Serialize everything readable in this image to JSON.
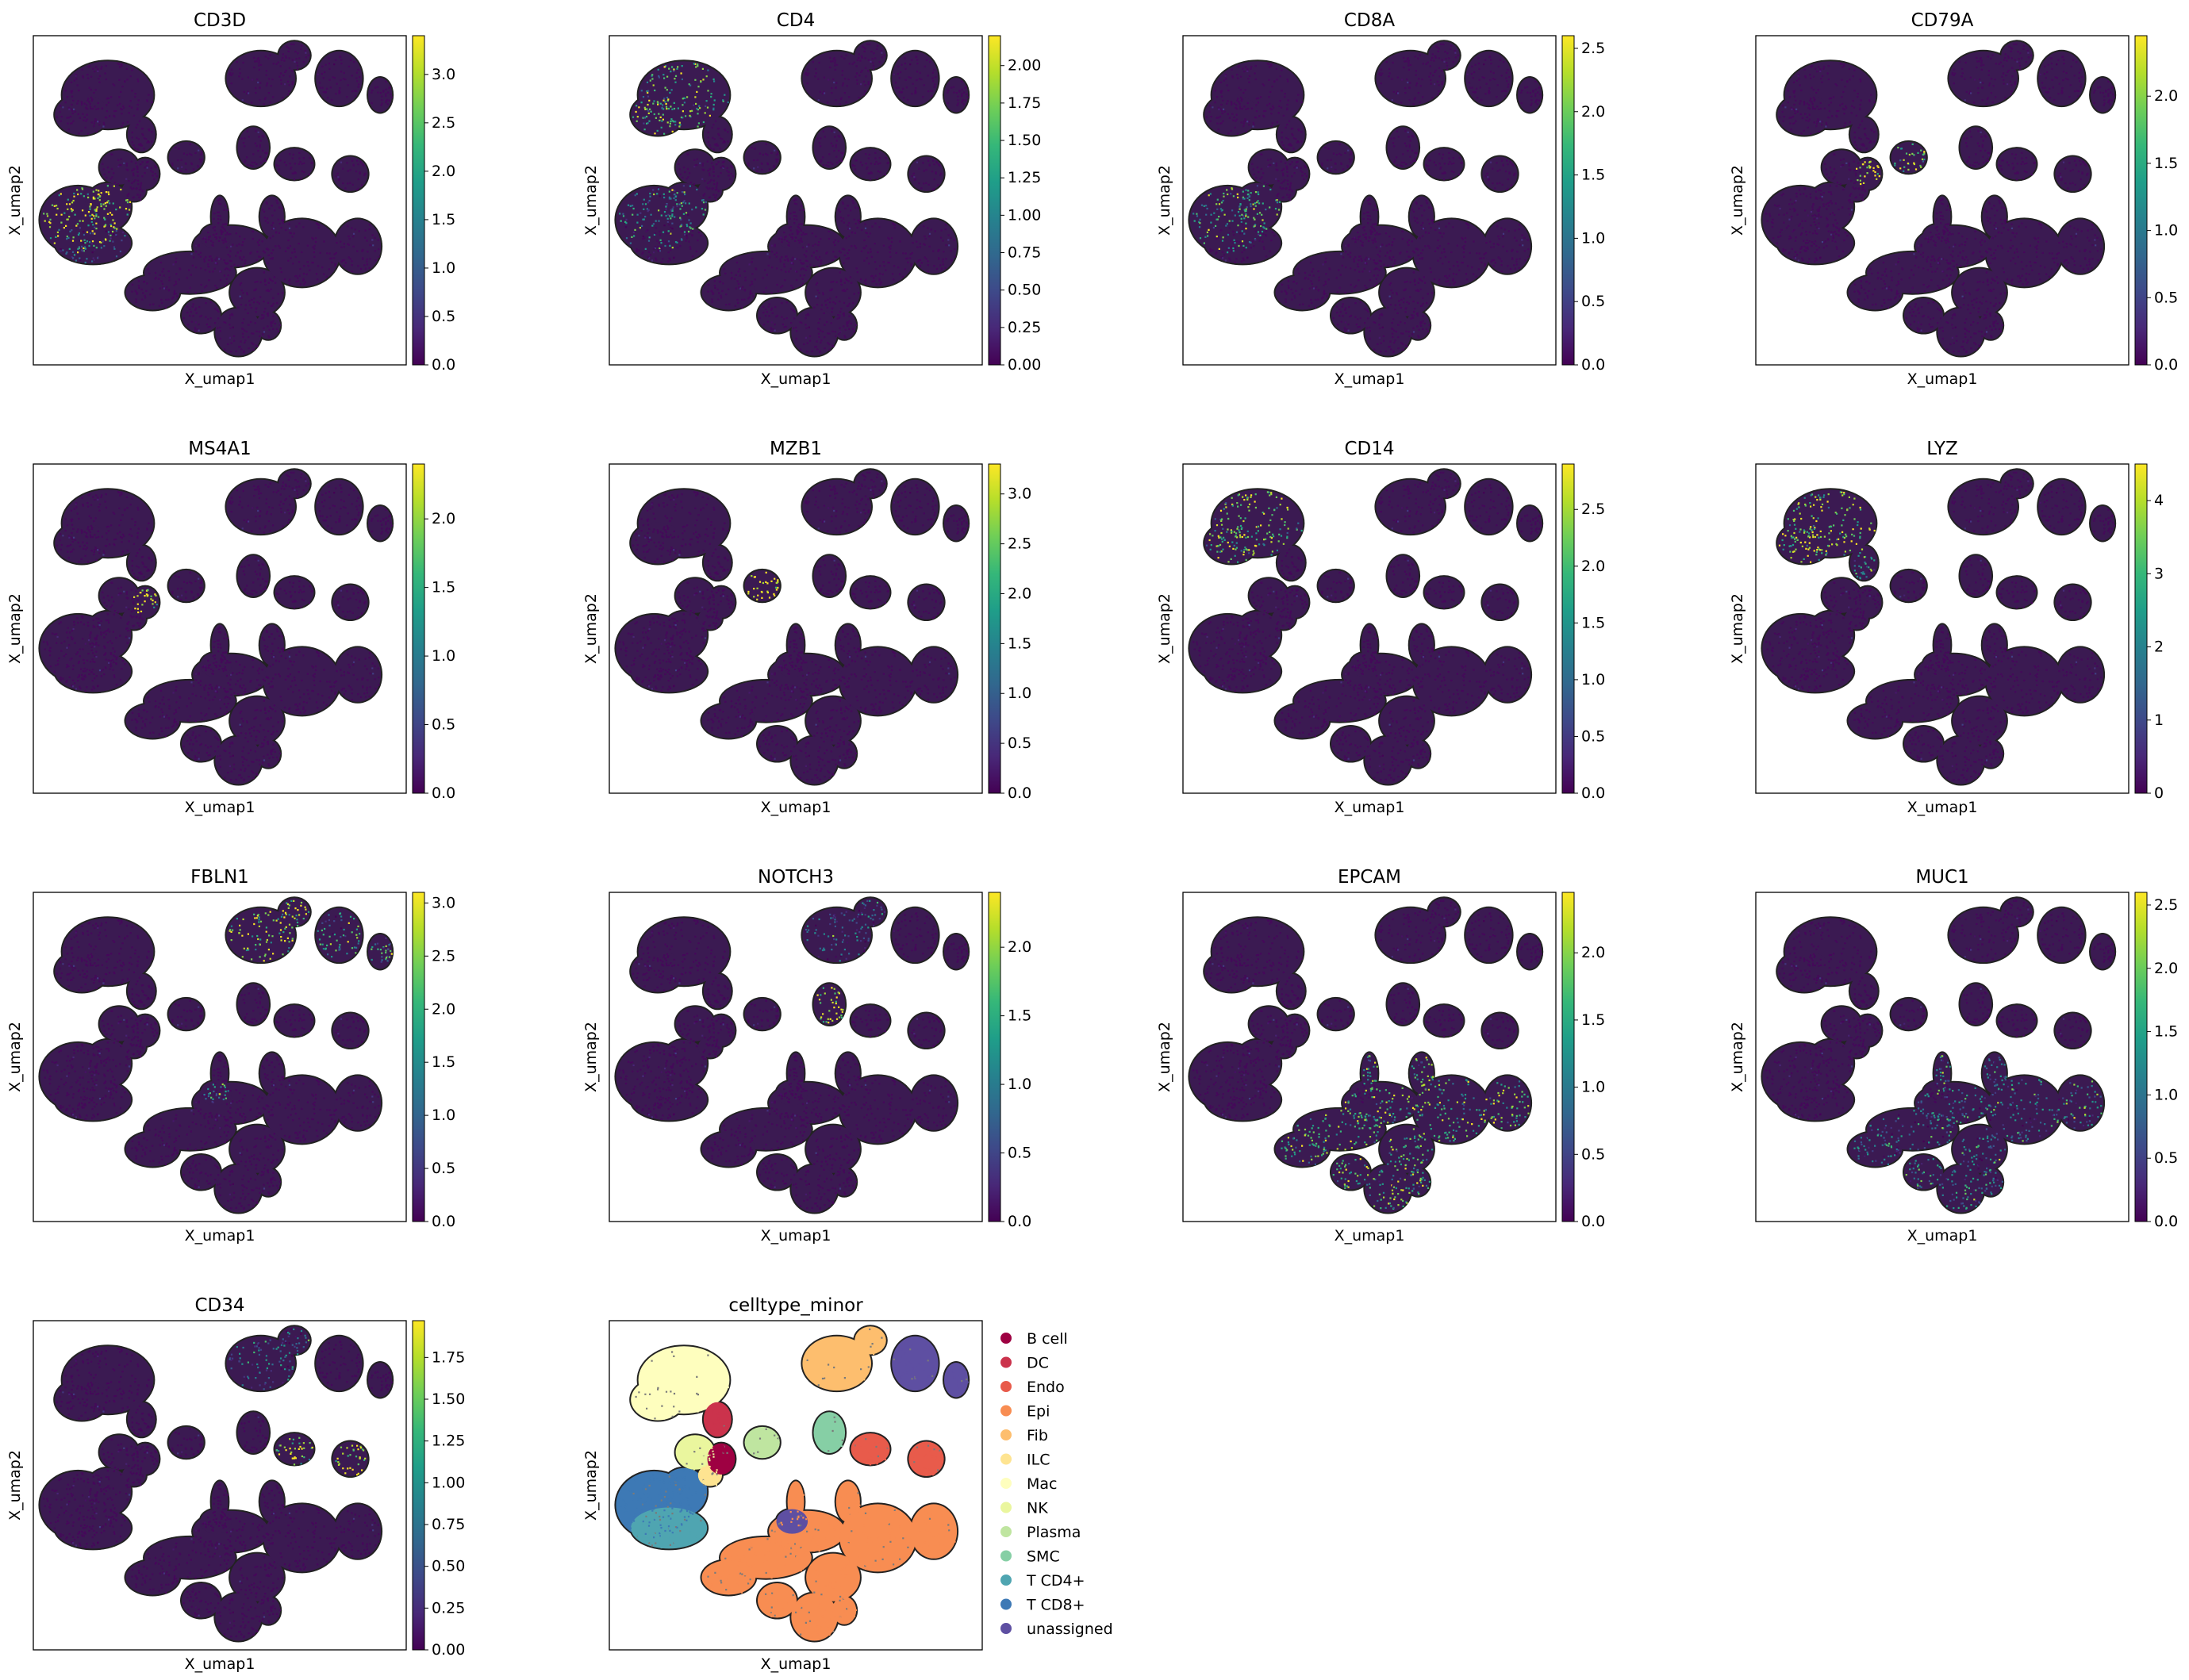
{
  "palette": {
    "viridis": [
      "#440154",
      "#482878",
      "#3e4989",
      "#31688e",
      "#26828e",
      "#1f9e89",
      "#35b779",
      "#6ece58",
      "#b5de2b",
      "#fde725"
    ],
    "background_cell": "#3b1a52",
    "outline": "#222222"
  },
  "chart_data": [
    {
      "type": "scatter",
      "kind": "umap-expression",
      "title": "CD3D",
      "xlabel": "X_umap1",
      "ylabel": "X_umap2",
      "colorbar": {
        "vmin": 0,
        "vmax": 3.4,
        "ticks": [
          "0.0",
          "0.5",
          "1.0",
          "1.5",
          "2.0",
          "2.5",
          "3.0"
        ],
        "tick_values": [
          0,
          0.5,
          1,
          1.5,
          2,
          2.5,
          3
        ]
      },
      "high_clusters": [
        {
          "cluster": "T CD8+",
          "level": 0.85
        },
        {
          "cluster": "T CD4+",
          "level": 0.25
        }
      ]
    },
    {
      "type": "scatter",
      "kind": "umap-expression",
      "title": "CD4",
      "xlabel": "X_umap1",
      "ylabel": "X_umap2",
      "colorbar": {
        "vmin": 0,
        "vmax": 2.2,
        "ticks": [
          "0.00",
          "0.25",
          "0.50",
          "0.75",
          "1.00",
          "1.25",
          "1.50",
          "1.75",
          "2.00"
        ],
        "tick_values": [
          0,
          0.25,
          0.5,
          0.75,
          1,
          1.25,
          1.5,
          1.75,
          2
        ]
      },
      "high_clusters": [
        {
          "cluster": "Mac",
          "level": 0.7
        },
        {
          "cluster": "T CD8+",
          "level": 0.45
        }
      ]
    },
    {
      "type": "scatter",
      "kind": "umap-expression",
      "title": "CD8A",
      "xlabel": "X_umap1",
      "ylabel": "X_umap2",
      "colorbar": {
        "vmin": 0,
        "vmax": 2.6,
        "ticks": [
          "0.0",
          "0.5",
          "1.0",
          "1.5",
          "2.0",
          "2.5"
        ],
        "tick_values": [
          0,
          0.5,
          1,
          1.5,
          2,
          2.5
        ]
      },
      "high_clusters": [
        {
          "cluster": "T CD8+",
          "level": 0.6
        }
      ]
    },
    {
      "type": "scatter",
      "kind": "umap-expression",
      "title": "CD79A",
      "xlabel": "X_umap1",
      "ylabel": "X_umap2",
      "colorbar": {
        "vmin": 0,
        "vmax": 2.45,
        "ticks": [
          "0.0",
          "0.5",
          "1.0",
          "1.5",
          "2.0"
        ],
        "tick_values": [
          0,
          0.5,
          1,
          1.5,
          2
        ]
      },
      "high_clusters": [
        {
          "cluster": "B cell",
          "level": 0.95
        },
        {
          "cluster": "Plasma",
          "level": 0.7
        }
      ]
    },
    {
      "type": "scatter",
      "kind": "umap-expression",
      "title": "MS4A1",
      "xlabel": "X_umap1",
      "ylabel": "X_umap2",
      "colorbar": {
        "vmin": 0,
        "vmax": 2.4,
        "ticks": [
          "0.0",
          "0.5",
          "1.0",
          "1.5",
          "2.0"
        ],
        "tick_values": [
          0,
          0.5,
          1,
          1.5,
          2
        ]
      },
      "high_clusters": [
        {
          "cluster": "B cell",
          "level": 0.95
        }
      ]
    },
    {
      "type": "scatter",
      "kind": "umap-expression",
      "title": "MZB1",
      "xlabel": "X_umap1",
      "ylabel": "X_umap2",
      "colorbar": {
        "vmin": 0,
        "vmax": 3.3,
        "ticks": [
          "0.0",
          "0.5",
          "1.0",
          "1.5",
          "2.0",
          "2.5",
          "3.0"
        ],
        "tick_values": [
          0,
          0.5,
          1,
          1.5,
          2,
          2.5,
          3
        ]
      },
      "high_clusters": [
        {
          "cluster": "Plasma",
          "level": 0.95
        }
      ]
    },
    {
      "type": "scatter",
      "kind": "umap-expression",
      "title": "CD14",
      "xlabel": "X_umap1",
      "ylabel": "X_umap2",
      "colorbar": {
        "vmin": 0,
        "vmax": 2.9,
        "ticks": [
          "0.0",
          "0.5",
          "1.0",
          "1.5",
          "2.0",
          "2.5"
        ],
        "tick_values": [
          0,
          0.5,
          1,
          1.5,
          2,
          2.5
        ]
      },
      "high_clusters": [
        {
          "cluster": "Mac",
          "level": 0.75
        }
      ]
    },
    {
      "type": "scatter",
      "kind": "umap-expression",
      "title": "LYZ",
      "xlabel": "X_umap1",
      "ylabel": "X_umap2",
      "colorbar": {
        "vmin": 0,
        "vmax": 4.5,
        "ticks": [
          "0",
          "1",
          "2",
          "3",
          "4"
        ],
        "tick_values": [
          0,
          1,
          2,
          3,
          4
        ]
      },
      "high_clusters": [
        {
          "cluster": "Mac",
          "level": 0.8
        },
        {
          "cluster": "DC",
          "level": 0.5
        }
      ]
    },
    {
      "type": "scatter",
      "kind": "umap-expression",
      "title": "FBLN1",
      "xlabel": "X_umap1",
      "ylabel": "X_umap2",
      "colorbar": {
        "vmin": 0,
        "vmax": 3.1,
        "ticks": [
          "0.0",
          "0.5",
          "1.0",
          "1.5",
          "2.0",
          "2.5",
          "3.0"
        ],
        "tick_values": [
          0,
          0.5,
          1,
          1.5,
          2,
          2.5,
          3
        ]
      },
      "high_clusters": [
        {
          "cluster": "Fib",
          "level": 0.85
        },
        {
          "cluster": "unassigned",
          "level": 0.5
        }
      ]
    },
    {
      "type": "scatter",
      "kind": "umap-expression",
      "title": "NOTCH3",
      "xlabel": "X_umap1",
      "ylabel": "X_umap2",
      "colorbar": {
        "vmin": 0,
        "vmax": 2.4,
        "ticks": [
          "0.0",
          "0.5",
          "1.0",
          "1.5",
          "2.0"
        ],
        "tick_values": [
          0,
          0.5,
          1,
          1.5,
          2
        ]
      },
      "high_clusters": [
        {
          "cluster": "SMC",
          "level": 0.9
        },
        {
          "cluster": "Fib",
          "level": 0.3
        }
      ]
    },
    {
      "type": "scatter",
      "kind": "umap-expression",
      "title": "EPCAM",
      "xlabel": "X_umap1",
      "ylabel": "X_umap2",
      "colorbar": {
        "vmin": 0,
        "vmax": 2.45,
        "ticks": [
          "0.0",
          "0.5",
          "1.0",
          "1.5",
          "2.0"
        ],
        "tick_values": [
          0,
          0.5,
          1,
          1.5,
          2
        ]
      },
      "high_clusters": [
        {
          "cluster": "Epi",
          "level": 0.65
        }
      ]
    },
    {
      "type": "scatter",
      "kind": "umap-expression",
      "title": "MUC1",
      "xlabel": "X_umap1",
      "ylabel": "X_umap2",
      "colorbar": {
        "vmin": 0,
        "vmax": 2.6,
        "ticks": [
          "0.0",
          "0.5",
          "1.0",
          "1.5",
          "2.0",
          "2.5"
        ],
        "tick_values": [
          0,
          0.5,
          1,
          1.5,
          2,
          2.5
        ]
      },
      "high_clusters": [
        {
          "cluster": "Epi",
          "level": 0.4
        }
      ]
    },
    {
      "type": "scatter",
      "kind": "umap-expression",
      "title": "CD34",
      "xlabel": "X_umap1",
      "ylabel": "X_umap2",
      "colorbar": {
        "vmin": 0,
        "vmax": 1.97,
        "ticks": [
          "0.00",
          "0.25",
          "0.50",
          "0.75",
          "1.00",
          "1.25",
          "1.50",
          "1.75"
        ],
        "tick_values": [
          0,
          0.25,
          0.5,
          0.75,
          1,
          1.25,
          1.5,
          1.75
        ]
      },
      "high_clusters": [
        {
          "cluster": "Endo",
          "level": 0.9
        },
        {
          "cluster": "Fib",
          "level": 0.3
        }
      ]
    },
    {
      "type": "scatter",
      "kind": "umap-categorical",
      "title": "celltype_minor",
      "xlabel": "X_umap1",
      "ylabel": "X_umap2",
      "legend_placement": "right",
      "categories": [
        {
          "name": "B cell",
          "color": "#9e0142"
        },
        {
          "name": "DC",
          "color": "#cb334c"
        },
        {
          "name": "Endo",
          "color": "#e85b4b"
        },
        {
          "name": "Epi",
          "color": "#f88d52"
        },
        {
          "name": "Fib",
          "color": "#fdbe6e"
        },
        {
          "name": "ILC",
          "color": "#fee491"
        },
        {
          "name": "Mac",
          "color": "#fefebe"
        },
        {
          "name": "NK",
          "color": "#eaf69e"
        },
        {
          "name": "Plasma",
          "color": "#bfe5a0"
        },
        {
          "name": "SMC",
          "color": "#86cfa5"
        },
        {
          "name": "T CD4+",
          "color": "#4fa5b1"
        },
        {
          "name": "T CD8+",
          "color": "#3d79b5"
        },
        {
          "name": "unassigned",
          "color": "#5e4fa2"
        }
      ]
    }
  ]
}
